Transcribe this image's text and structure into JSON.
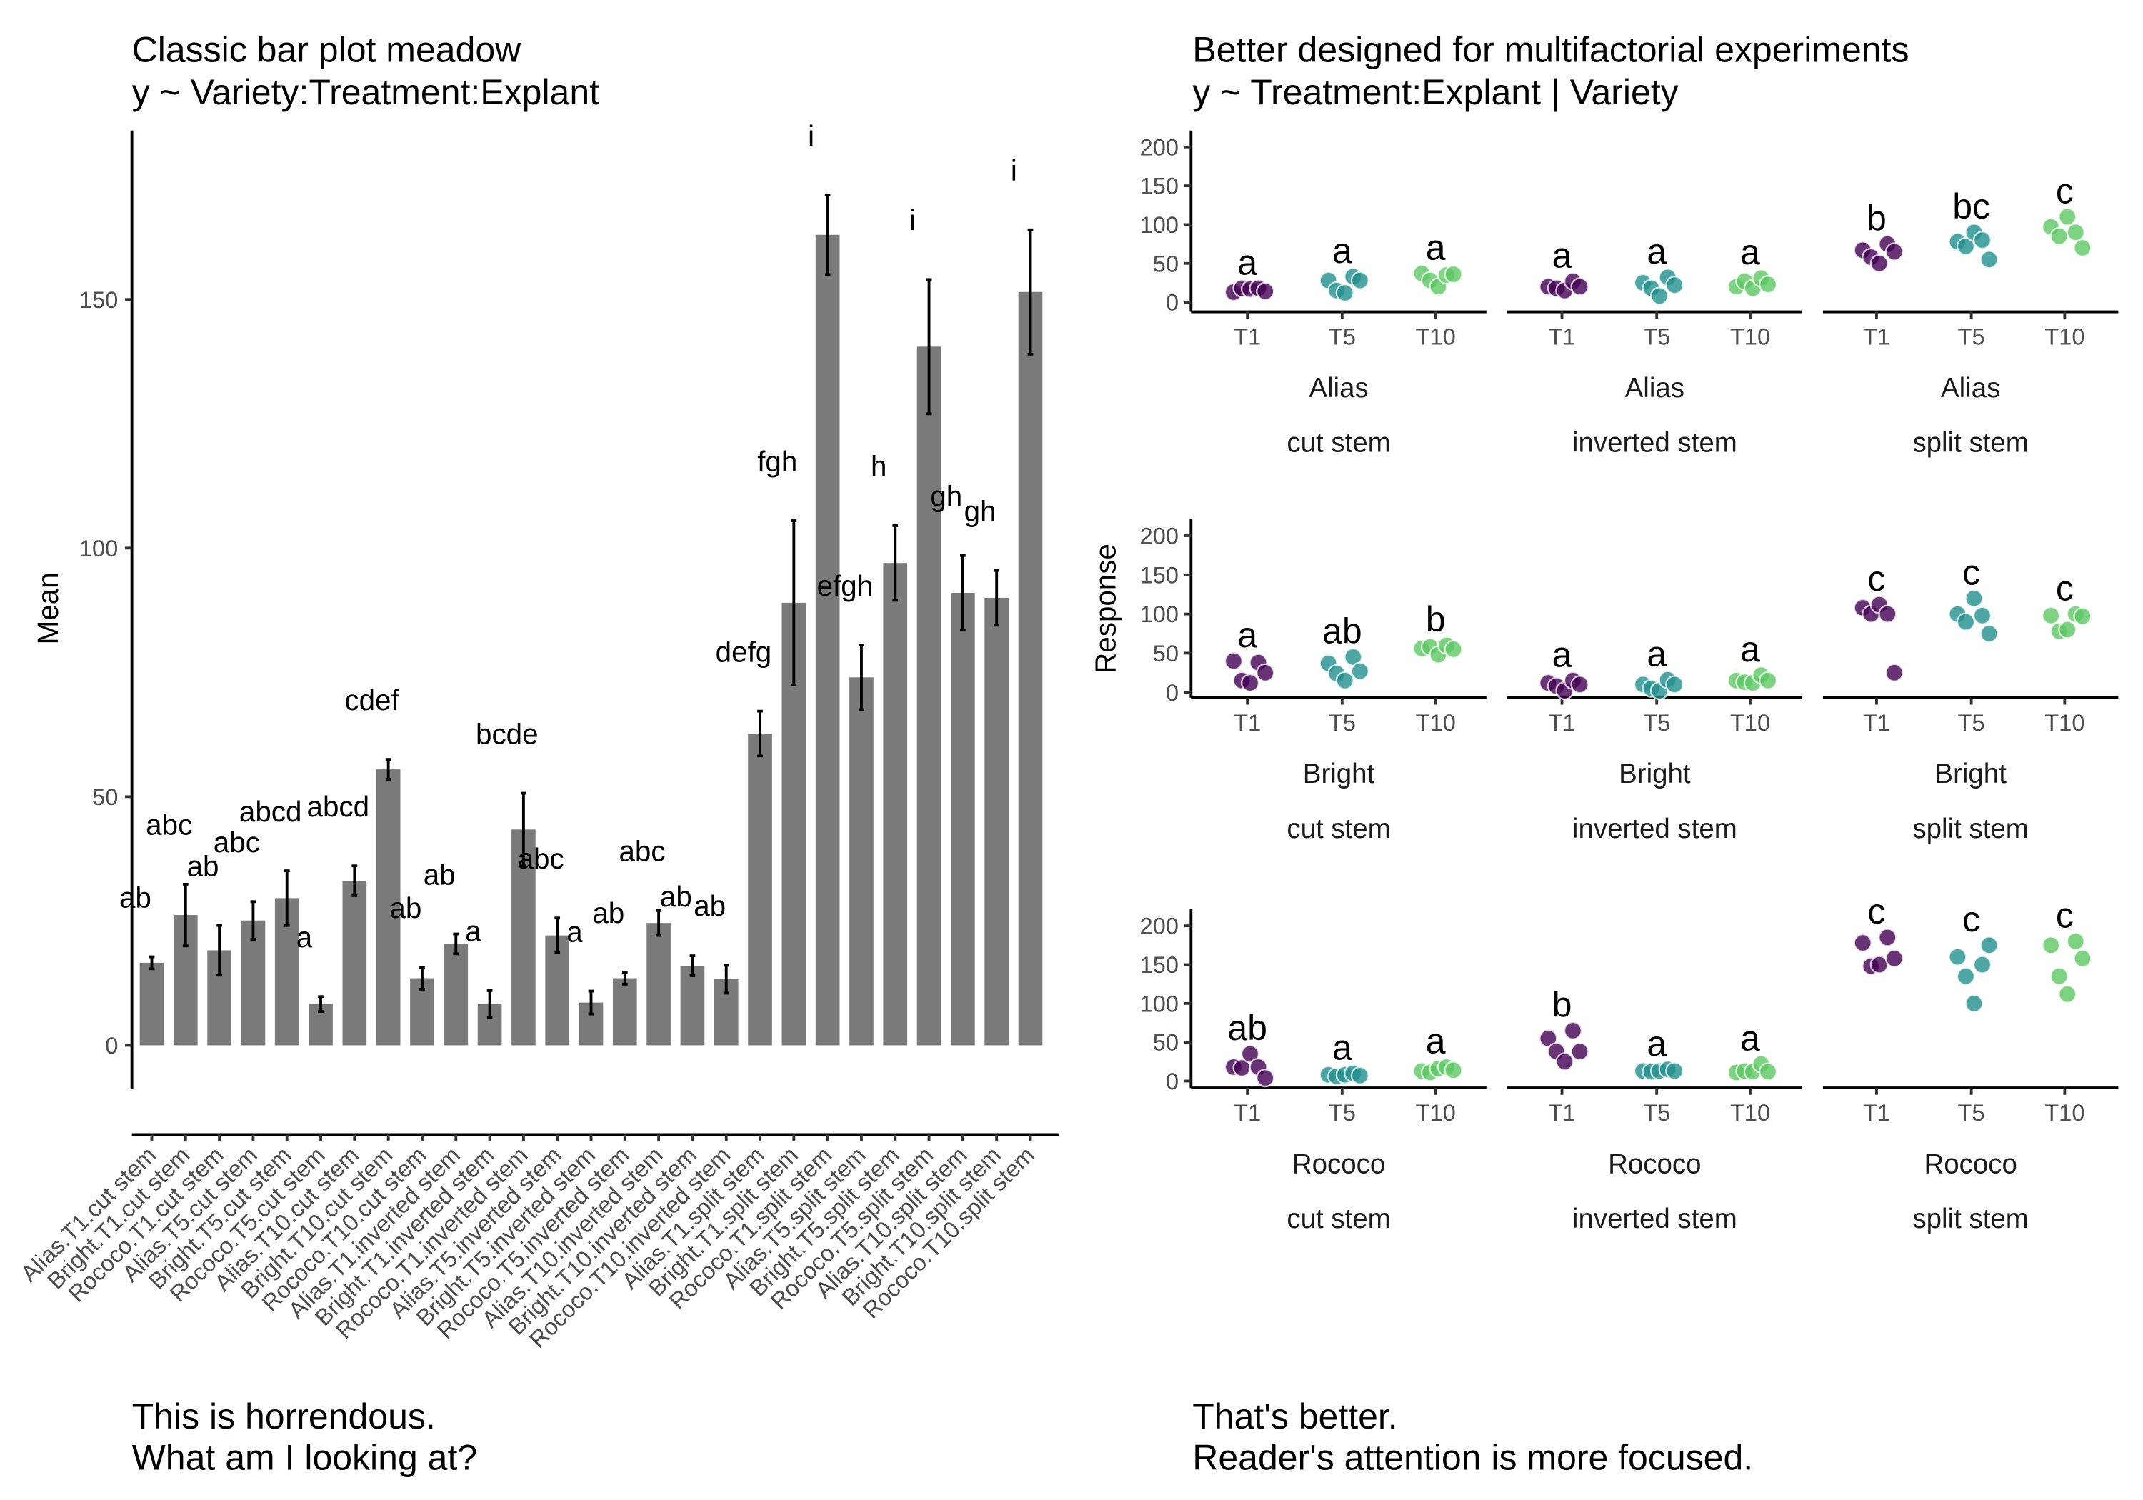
{
  "left_panel": {
    "title_line1": "Classic bar plot meadow",
    "title_line2": "y ~ Variety:Treatment:Explant",
    "caption_line1": "This is horrendous.",
    "caption_line2": "What am I looking at?"
  },
  "right_panel": {
    "title_line1": "Better designed for multifactorial experiments",
    "title_line2": "y ~ Treatment:Explant | Variety",
    "caption_line1": "That's better.",
    "caption_line2": "Reader's attention is more focused."
  },
  "chart_data": [
    {
      "type": "bar",
      "title": "Classic bar plot meadow\ny ~ Variety:Treatment:Explant",
      "xlabel": "",
      "ylabel": "Mean",
      "ylim": [
        -8,
        180
      ],
      "yticks": [
        0,
        50,
        100,
        150
      ],
      "grid": false,
      "bar_color": "#7a7a7a",
      "categories": [
        "Alias.T1.cut stem",
        "Bright.T1.cut stem",
        "Rococo.T1.cut stem",
        "Alias.T5.cut stem",
        "Bright.T5.cut stem",
        "Rococo.T5.cut stem",
        "Alias.T10.cut stem",
        "Bright.T10.cut stem",
        "Rococo.T10.cut stem",
        "Alias.T1.inverted stem",
        "Bright.T1.inverted stem",
        "Rococo.T1.inverted stem",
        "Alias.T5.inverted stem",
        "Bright.T5.inverted stem",
        "Rococo.T5.inverted stem",
        "Alias.T10.inverted stem",
        "Bright.T10.inverted stem",
        "Rococo.T10.inverted stem",
        "Alias.T1.split stem",
        "Bright.T1.split stem",
        "Rococo.T1.split stem",
        "Alias.T5.split stem",
        "Bright.T5.split stem",
        "Rococo.T5.split stem",
        "Alias.T10.split stem",
        "Bright.T10.split stem",
        "Rococo.T10.split stem"
      ],
      "values": [
        16.6,
        26.2,
        19.1,
        25.1,
        29.6,
        8.3,
        33.1,
        55.5,
        13.5,
        20.4,
        8.3,
        43.4,
        22.1,
        8.6,
        13.5,
        24.6,
        16.0,
        13.3,
        62.7,
        89.0,
        163.0,
        74.0,
        97.0,
        140.5,
        91.0,
        90.0,
        151.5
      ],
      "errors": [
        1.2,
        6.2,
        5.0,
        3.8,
        5.5,
        1.5,
        3.0,
        2.0,
        2.2,
        2.0,
        2.7,
        7.3,
        3.5,
        2.3,
        1.2,
        2.5,
        2.0,
        2.8,
        4.5,
        16.5,
        8.0,
        6.5,
        7.5,
        13.5,
        7.5,
        5.5,
        12.5
      ],
      "letters": [
        "ab",
        "abc",
        "ab",
        "abc",
        "abcd",
        "a",
        "abcd",
        "cdef",
        "ab",
        "ab",
        "a",
        "bcde",
        "abc",
        "a",
        "ab",
        "abc",
        "ab",
        "ab",
        "defg",
        "fgh",
        "i",
        "efgh",
        "h",
        "i",
        "gh",
        "gh",
        "i"
      ]
    },
    {
      "type": "scatter",
      "title": "Better designed for multifactorial experiments\ny ~ Treatment:Explant | Variety",
      "xlabel": "",
      "ylabel": "Response",
      "ylim": [
        -5,
        220
      ],
      "yticks": [
        0,
        50,
        100,
        150,
        200
      ],
      "grid": false,
      "treatments": [
        "T1",
        "T5",
        "T10"
      ],
      "treatment_colors": {
        "T1": "#440154",
        "T5": "#21908C",
        "T10": "#5DC863"
      },
      "varieties": [
        "Alias",
        "Bright",
        "Rococo"
      ],
      "explants": [
        "cut stem",
        "inverted stem",
        "split stem"
      ],
      "panels": [
        {
          "variety": "Alias",
          "explant": "cut stem",
          "groups": [
            {
              "treatment": "T1",
              "letter": "a",
              "values": [
                13,
                18,
                17,
                18,
                14
              ]
            },
            {
              "treatment": "T5",
              "letter": "a",
              "values": [
                28,
                15,
                12,
                33,
                28
              ]
            },
            {
              "treatment": "T10",
              "letter": "a",
              "values": [
                37,
                28,
                20,
                35,
                36
              ]
            }
          ]
        },
        {
          "variety": "Alias",
          "explant": "inverted stem",
          "groups": [
            {
              "treatment": "T1",
              "letter": "a",
              "values": [
                20,
                18,
                15,
                27,
                20
              ]
            },
            {
              "treatment": "T5",
              "letter": "a",
              "values": [
                25,
                18,
                8,
                32,
                22
              ]
            },
            {
              "treatment": "T10",
              "letter": "a",
              "values": [
                20,
                27,
                18,
                31,
                23
              ]
            }
          ]
        },
        {
          "variety": "Alias",
          "explant": "split stem",
          "groups": [
            {
              "treatment": "T1",
              "letter": "b",
              "values": [
                67,
                58,
                50,
                75,
                65
              ]
            },
            {
              "treatment": "T5",
              "letter": "bc",
              "values": [
                78,
                72,
                90,
                80,
                55
              ]
            },
            {
              "treatment": "T10",
              "letter": "c",
              "values": [
                97,
                85,
                110,
                90,
                70
              ]
            }
          ]
        },
        {
          "variety": "Bright",
          "explant": "cut stem",
          "groups": [
            {
              "treatment": "T1",
              "letter": "a",
              "values": [
                40,
                15,
                12,
                38,
                25
              ]
            },
            {
              "treatment": "T5",
              "letter": "ab",
              "values": [
                37,
                24,
                15,
                45,
                27
              ]
            },
            {
              "treatment": "T10",
              "letter": "b",
              "values": [
                56,
                58,
                48,
                60,
                55
              ]
            }
          ]
        },
        {
          "variety": "Bright",
          "explant": "inverted stem",
          "groups": [
            {
              "treatment": "T1",
              "letter": "a",
              "values": [
                12,
                8,
                2,
                15,
                10
              ]
            },
            {
              "treatment": "T5",
              "letter": "a",
              "values": [
                10,
                5,
                2,
                16,
                10
              ]
            },
            {
              "treatment": "T10",
              "letter": "a",
              "values": [
                15,
                13,
                12,
                22,
                15
              ]
            }
          ]
        },
        {
          "variety": "Bright",
          "explant": "split stem",
          "groups": [
            {
              "treatment": "T1",
              "letter": "c",
              "values": [
                108,
                100,
                112,
                100,
                25
              ]
            },
            {
              "treatment": "T5",
              "letter": "c",
              "values": [
                100,
                90,
                120,
                98,
                75
              ]
            },
            {
              "treatment": "T10",
              "letter": "c",
              "values": [
                98,
                78,
                80,
                100,
                97
              ]
            }
          ]
        },
        {
          "variety": "Rococo",
          "explant": "cut stem",
          "groups": [
            {
              "treatment": "T1",
              "letter": "ab",
              "values": [
                18,
                17,
                35,
                18,
                4
              ]
            },
            {
              "treatment": "T5",
              "letter": "a",
              "values": [
                8,
                6,
                8,
                10,
                7
              ]
            },
            {
              "treatment": "T10",
              "letter": "a",
              "values": [
                13,
                11,
                16,
                18,
                14
              ]
            }
          ]
        },
        {
          "variety": "Rococo",
          "explant": "inverted stem",
          "groups": [
            {
              "treatment": "T1",
              "letter": "b",
              "values": [
                55,
                38,
                25,
                65,
                38
              ]
            },
            {
              "treatment": "T5",
              "letter": "a",
              "values": [
                13,
                12,
                13,
                15,
                13
              ]
            },
            {
              "treatment": "T10",
              "letter": "a",
              "values": [
                11,
                13,
                12,
                22,
                12
              ]
            }
          ]
        },
        {
          "variety": "Rococo",
          "explant": "split stem",
          "groups": [
            {
              "treatment": "T1",
              "letter": "c",
              "values": [
                178,
                148,
                150,
                185,
                158
              ]
            },
            {
              "treatment": "T5",
              "letter": "c",
              "values": [
                160,
                135,
                100,
                150,
                175
              ]
            },
            {
              "treatment": "T10",
              "letter": "c",
              "values": [
                175,
                135,
                112,
                180,
                158
              ]
            }
          ]
        }
      ]
    }
  ]
}
